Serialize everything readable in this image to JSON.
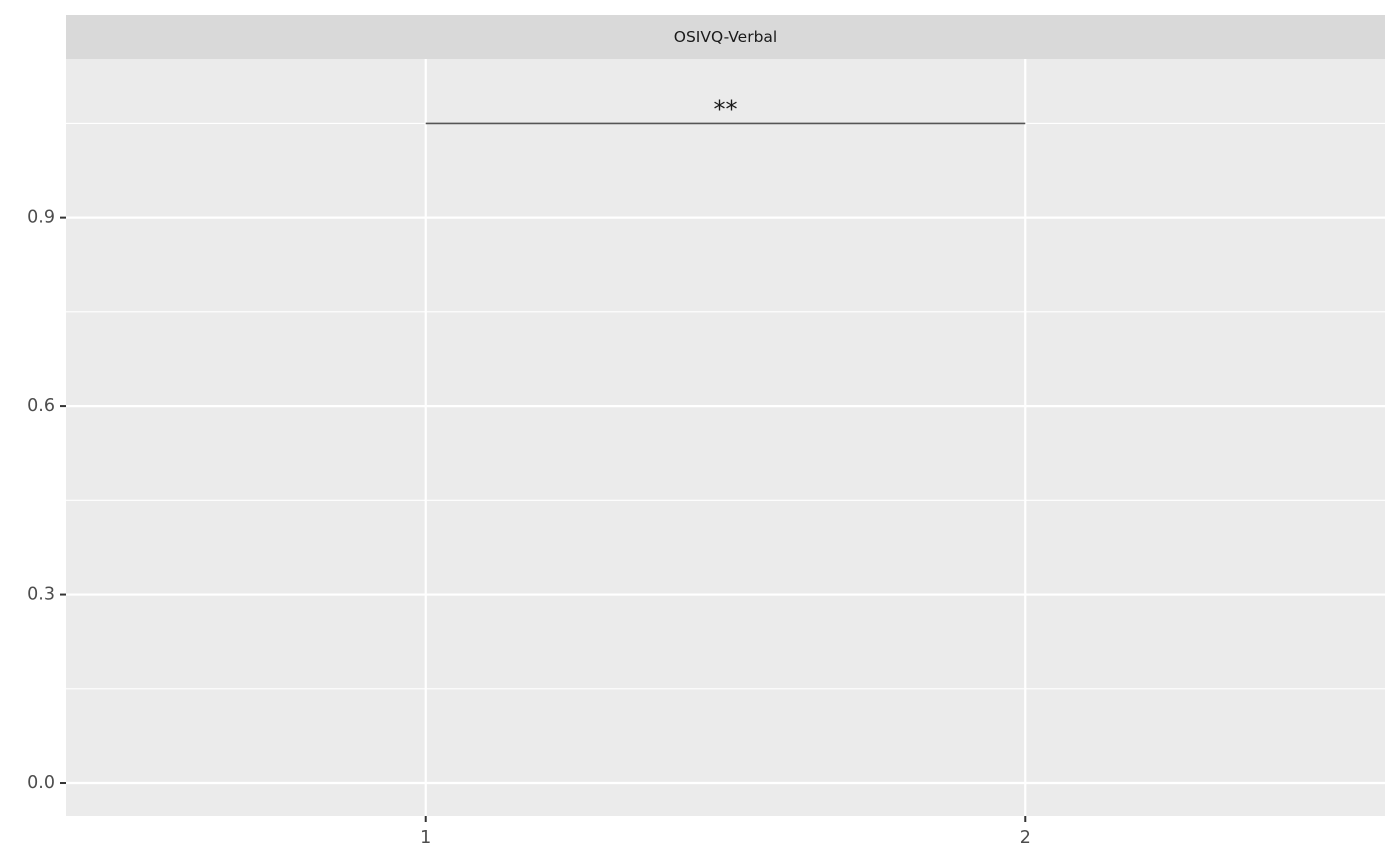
{
  "chart_data": {
    "type": "scatter",
    "facet_label": "OSIVQ-Verbal",
    "x_ticks": [
      "1",
      "2"
    ],
    "x_tick_values": [
      1,
      2
    ],
    "xlim": [
      0.4,
      2.6
    ],
    "y_ticks": [
      "0.0",
      "0.3",
      "0.6",
      "0.9"
    ],
    "y_tick_values": [
      0.0,
      0.3,
      0.6,
      0.9
    ],
    "y_minor": [
      0.15,
      0.45,
      0.75,
      1.05
    ],
    "ylim": [
      -0.0525,
      1.1525
    ],
    "significance_bracket": {
      "x_start": 1,
      "x_end": 2,
      "y": 1.05,
      "label": "**"
    },
    "grid": true,
    "colors": {
      "panel_background": "#ebebeb",
      "strip_background": "#d9d9d9",
      "grid_line": "#ffffff",
      "bracket": "#555555",
      "tick_text": "#4d4d4d",
      "strip_text": "#1a1a1a"
    }
  }
}
